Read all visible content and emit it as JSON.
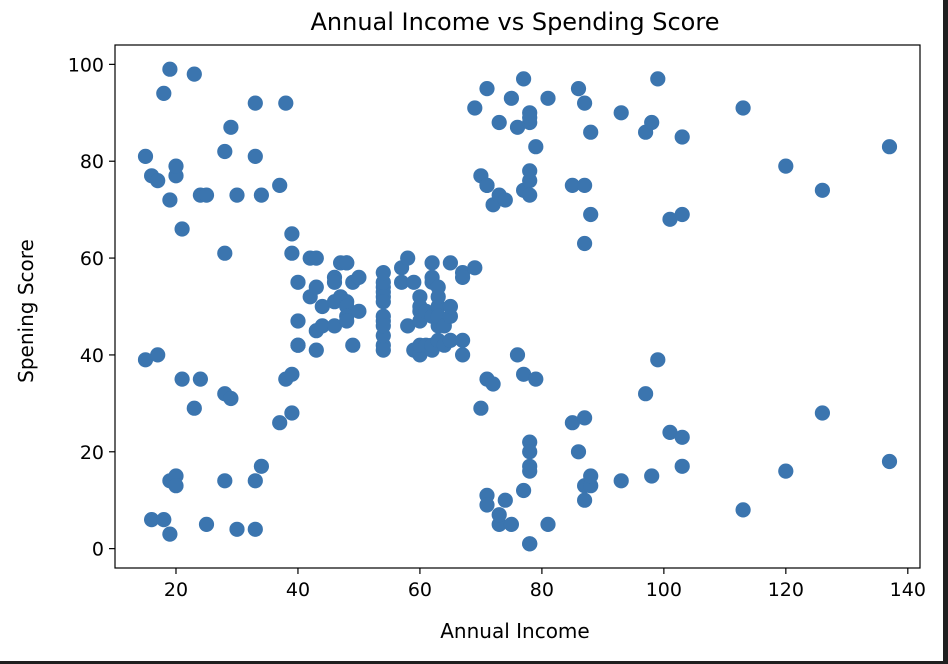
{
  "chart_data": {
    "type": "scatter",
    "title": "Annual Income vs Spending Score",
    "xlabel": "Annual Income",
    "ylabel": "Spening Score",
    "xlim": [
      10,
      142
    ],
    "ylim": [
      -4,
      104
    ],
    "xticks": [
      "20",
      "40",
      "60",
      "80",
      "100",
      "120",
      "140"
    ],
    "yticks": [
      "0",
      "20",
      "40",
      "60",
      "80",
      "100"
    ],
    "xtick_values": [
      20,
      40,
      60,
      80,
      100,
      120,
      140
    ],
    "ytick_values": [
      0,
      20,
      40,
      60,
      80,
      100
    ],
    "grid": false,
    "marker_color": "#3b75af",
    "points": [
      [
        15,
        39
      ],
      [
        15,
        81
      ],
      [
        16,
        6
      ],
      [
        16,
        77
      ],
      [
        17,
        40
      ],
      [
        17,
        76
      ],
      [
        18,
        6
      ],
      [
        18,
        94
      ],
      [
        19,
        3
      ],
      [
        19,
        72
      ],
      [
        19,
        14
      ],
      [
        19,
        99
      ],
      [
        20,
        15
      ],
      [
        20,
        77
      ],
      [
        20,
        13
      ],
      [
        20,
        79
      ],
      [
        21,
        35
      ],
      [
        21,
        66
      ],
      [
        23,
        29
      ],
      [
        23,
        98
      ],
      [
        24,
        35
      ],
      [
        24,
        73
      ],
      [
        25,
        5
      ],
      [
        25,
        73
      ],
      [
        28,
        14
      ],
      [
        28,
        82
      ],
      [
        28,
        32
      ],
      [
        28,
        61
      ],
      [
        29,
        31
      ],
      [
        29,
        87
      ],
      [
        30,
        4
      ],
      [
        30,
        73
      ],
      [
        33,
        4
      ],
      [
        33,
        92
      ],
      [
        33,
        14
      ],
      [
        33,
        81
      ],
      [
        34,
        17
      ],
      [
        34,
        73
      ],
      [
        37,
        26
      ],
      [
        37,
        75
      ],
      [
        38,
        35
      ],
      [
        38,
        92
      ],
      [
        39,
        36
      ],
      [
        39,
        61
      ],
      [
        39,
        28
      ],
      [
        39,
        65
      ],
      [
        40,
        55
      ],
      [
        40,
        47
      ],
      [
        40,
        42
      ],
      [
        40,
        42
      ],
      [
        42,
        52
      ],
      [
        42,
        60
      ],
      [
        43,
        54
      ],
      [
        43,
        60
      ],
      [
        43,
        45
      ],
      [
        43,
        41
      ],
      [
        44,
        50
      ],
      [
        44,
        46
      ],
      [
        46,
        51
      ],
      [
        46,
        46
      ],
      [
        46,
        56
      ],
      [
        46,
        55
      ],
      [
        47,
        52
      ],
      [
        47,
        59
      ],
      [
        48,
        51
      ],
      [
        48,
        59
      ],
      [
        48,
        50
      ],
      [
        48,
        48
      ],
      [
        48,
        59
      ],
      [
        48,
        47
      ],
      [
        49,
        55
      ],
      [
        49,
        42
      ],
      [
        50,
        49
      ],
      [
        50,
        56
      ],
      [
        54,
        47
      ],
      [
        54,
        54
      ],
      [
        54,
        53
      ],
      [
        54,
        48
      ],
      [
        54,
        52
      ],
      [
        54,
        42
      ],
      [
        54,
        51
      ],
      [
        54,
        55
      ],
      [
        54,
        41
      ],
      [
        54,
        44
      ],
      [
        54,
        57
      ],
      [
        54,
        46
      ],
      [
        57,
        58
      ],
      [
        57,
        55
      ],
      [
        58,
        60
      ],
      [
        58,
        46
      ],
      [
        59,
        55
      ],
      [
        59,
        41
      ],
      [
        60,
        49
      ],
      [
        60,
        40
      ],
      [
        60,
        42
      ],
      [
        60,
        52
      ],
      [
        60,
        47
      ],
      [
        60,
        50
      ],
      [
        61,
        42
      ],
      [
        61,
        49
      ],
      [
        62,
        41
      ],
      [
        62,
        48
      ],
      [
        62,
        59
      ],
      [
        62,
        55
      ],
      [
        62,
        56
      ],
      [
        62,
        42
      ],
      [
        63,
        50
      ],
      [
        63,
        46
      ],
      [
        63,
        43
      ],
      [
        63,
        48
      ],
      [
        63,
        52
      ],
      [
        63,
        54
      ],
      [
        64,
        42
      ],
      [
        64,
        46
      ],
      [
        65,
        48
      ],
      [
        65,
        50
      ],
      [
        65,
        43
      ],
      [
        65,
        59
      ],
      [
        67,
        43
      ],
      [
        67,
        57
      ],
      [
        67,
        56
      ],
      [
        67,
        40
      ],
      [
        69,
        58
      ],
      [
        69,
        91
      ],
      [
        70,
        29
      ],
      [
        70,
        77
      ],
      [
        71,
        35
      ],
      [
        71,
        95
      ],
      [
        71,
        11
      ],
      [
        71,
        75
      ],
      [
        71,
        9
      ],
      [
        71,
        75
      ],
      [
        72,
        34
      ],
      [
        72,
        71
      ],
      [
        73,
        5
      ],
      [
        73,
        88
      ],
      [
        73,
        7
      ],
      [
        73,
        73
      ],
      [
        74,
        10
      ],
      [
        74,
        72
      ],
      [
        75,
        5
      ],
      [
        75,
        93
      ],
      [
        76,
        40
      ],
      [
        76,
        87
      ],
      [
        77,
        12
      ],
      [
        77,
        97
      ],
      [
        77,
        36
      ],
      [
        77,
        74
      ],
      [
        78,
        22
      ],
      [
        78,
        90
      ],
      [
        78,
        17
      ],
      [
        78,
        88
      ],
      [
        78,
        20
      ],
      [
        78,
        76
      ],
      [
        78,
        16
      ],
      [
        78,
        89
      ],
      [
        78,
        1
      ],
      [
        78,
        78
      ],
      [
        78,
        1
      ],
      [
        78,
        73
      ],
      [
        79,
        35
      ],
      [
        79,
        83
      ],
      [
        81,
        5
      ],
      [
        81,
        93
      ],
      [
        85,
        26
      ],
      [
        85,
        75
      ],
      [
        86,
        20
      ],
      [
        86,
        95
      ],
      [
        87,
        27
      ],
      [
        87,
        63
      ],
      [
        87,
        13
      ],
      [
        87,
        75
      ],
      [
        87,
        10
      ],
      [
        87,
        92
      ],
      [
        88,
        13
      ],
      [
        88,
        86
      ],
      [
        88,
        15
      ],
      [
        88,
        69
      ],
      [
        93,
        14
      ],
      [
        93,
        90
      ],
      [
        97,
        32
      ],
      [
        97,
        86
      ],
      [
        98,
        15
      ],
      [
        98,
        88
      ],
      [
        99,
        39
      ],
      [
        99,
        97
      ],
      [
        101,
        24
      ],
      [
        101,
        68
      ],
      [
        103,
        17
      ],
      [
        103,
        85
      ],
      [
        103,
        23
      ],
      [
        103,
        69
      ],
      [
        113,
        8
      ],
      [
        113,
        91
      ],
      [
        120,
        16
      ],
      [
        120,
        79
      ],
      [
        126,
        28
      ],
      [
        126,
        74
      ],
      [
        137,
        18
      ],
      [
        137,
        83
      ]
    ]
  }
}
